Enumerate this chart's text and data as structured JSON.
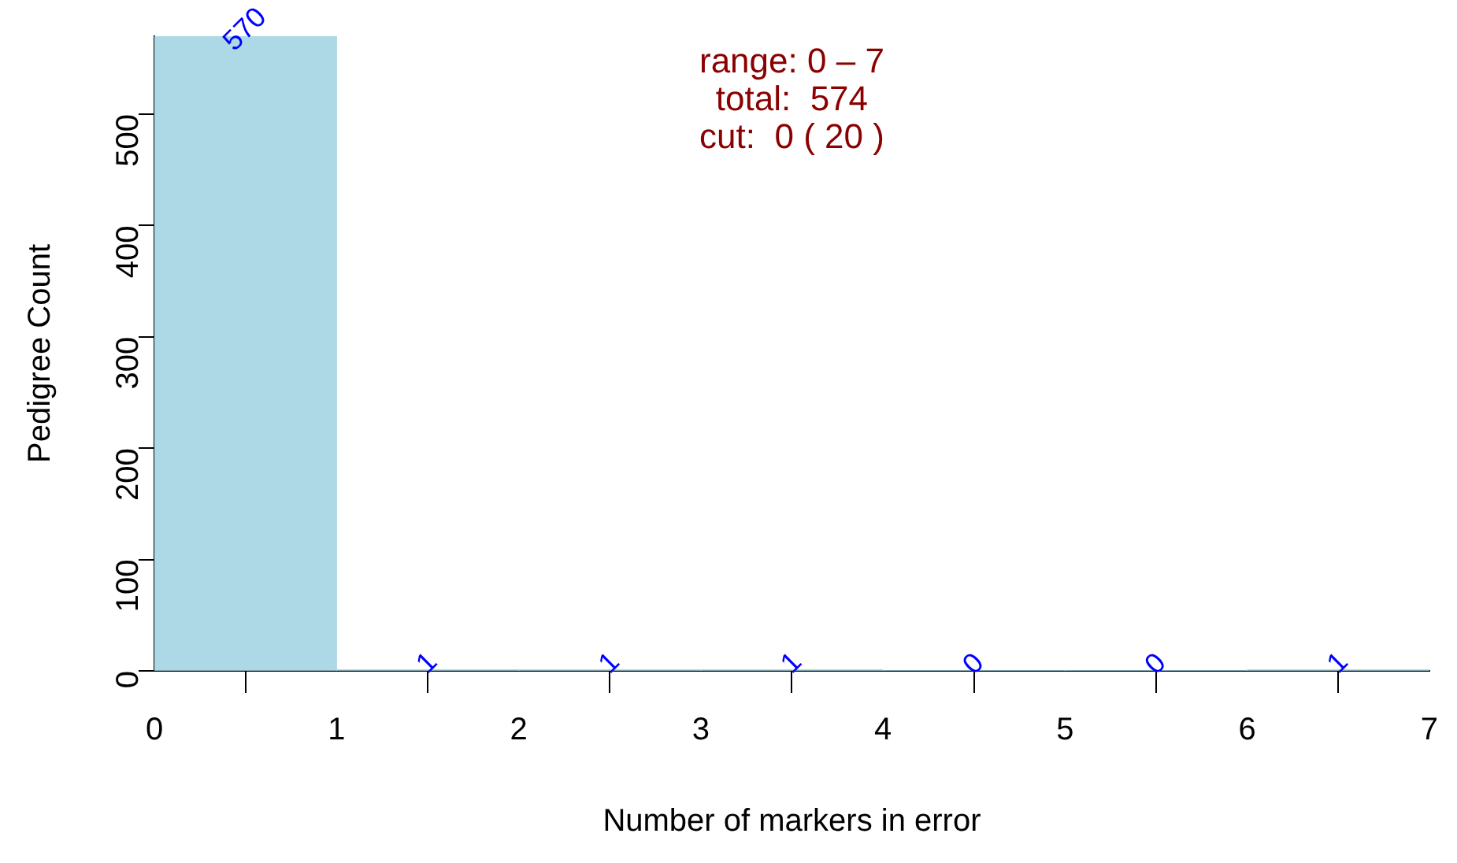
{
  "chart_data": {
    "type": "histogram",
    "xlabel": "Number of markers in error",
    "ylabel": "Pedigree Count",
    "bins": [
      0,
      1,
      2,
      3,
      4,
      5,
      6,
      7
    ],
    "values": [
      570,
      1,
      1,
      1,
      0,
      0,
      1
    ],
    "color": "#add8e6",
    "xlim": [
      0,
      7
    ],
    "xticks": [
      0,
      1,
      2,
      3,
      4,
      5,
      6,
      7
    ],
    "ylim": [
      0,
      570
    ],
    "yticks": [
      0,
      100,
      200,
      300,
      400,
      500
    ],
    "grid": false,
    "legend": false,
    "data_labels": true,
    "annotations": [
      "range: 0 – 7",
      "total:  574",
      "cut:  0 ( 20 )"
    ]
  }
}
